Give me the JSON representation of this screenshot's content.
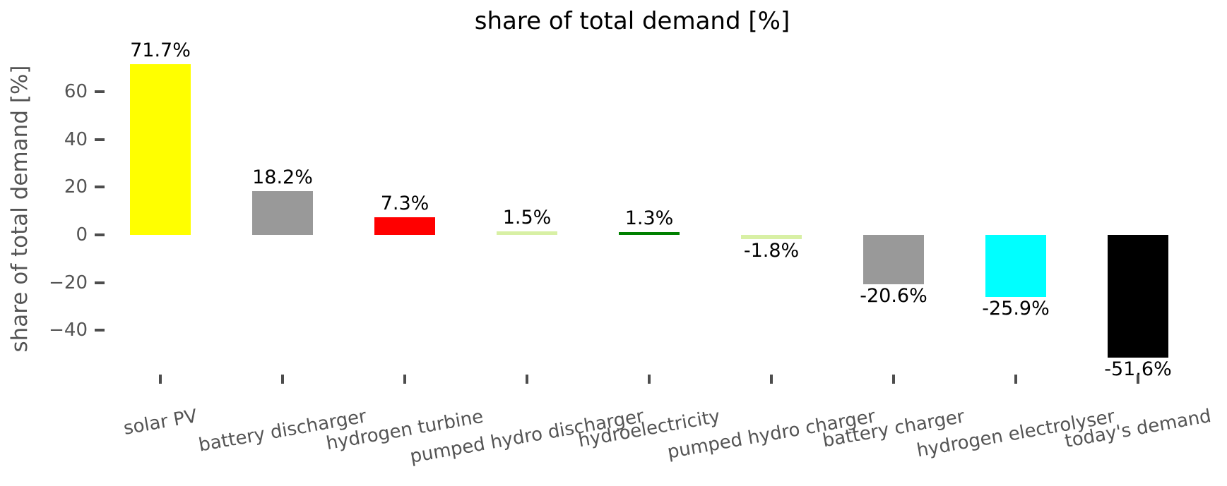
{
  "chart_data": {
    "type": "bar",
    "title": "share of total demand [%]",
    "ylabel": "share of total demand [%]",
    "xlabel": "",
    "categories": [
      "solar PV",
      "battery discharger",
      "hydrogen turbine",
      "pumped hydro discharger",
      "hydroelectricity",
      "pumped hydro charger",
      "battery charger",
      "hydrogen electrolyser",
      "today's demand"
    ],
    "values": [
      71.7,
      18.2,
      7.3,
      1.5,
      1.3,
      -1.8,
      -20.6,
      -25.9,
      -51.6
    ],
    "bar_labels": [
      "71.7%",
      "18.2%",
      "7.3%",
      "1.5%",
      "1.3%",
      "-1.8%",
      "-20.6%",
      "-25.9%",
      "-51.6%"
    ],
    "bar_colors": [
      "#ffff00",
      "#999999",
      "#ff0000",
      "#d8f0a5",
      "#008000",
      "#d8f0a5",
      "#999999",
      "#00ffff",
      "#000000"
    ],
    "yticks": [
      60,
      40,
      20,
      0,
      -20,
      -40
    ],
    "ytick_labels": [
      "60",
      "40",
      "20",
      "0",
      "−20",
      "−40"
    ],
    "ylim": [
      -58,
      85
    ],
    "grid": false,
    "legend": false,
    "xtick_rotation_deg": 10,
    "background_color": "#ffffff",
    "title_color": "#000000",
    "value_label_color": "#000000",
    "axis_text_color": "#545454"
  }
}
